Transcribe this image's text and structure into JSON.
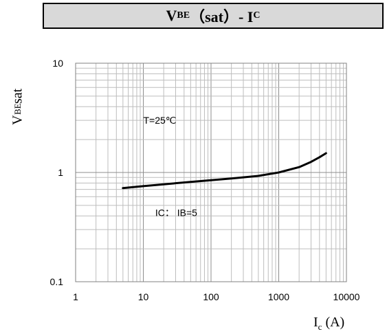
{
  "title": {
    "main": "V",
    "sub": "BE",
    "mid": "（sat）- I",
    "sub2": "C"
  },
  "ylabel": {
    "main": "V",
    "sub": "BE",
    "tail": "sat"
  },
  "xlabel": {
    "main": "I",
    "sub": "c",
    "tail": "(A)"
  },
  "chart_data": {
    "type": "line",
    "x_scale": "log",
    "y_scale": "log",
    "xlim": [
      1,
      10000
    ],
    "ylim": [
      0.1,
      10
    ],
    "x_ticks": [
      "1",
      "10",
      "100",
      "1000",
      "10000"
    ],
    "y_ticks": [
      "0.1",
      "1",
      "10"
    ],
    "grid": true,
    "annotations": [
      "T=25℃",
      "IC： IB=5"
    ],
    "series": [
      {
        "x": [
          5,
          10,
          20,
          50,
          100,
          200,
          500,
          1000,
          2000,
          3000,
          4000,
          5000
        ],
        "y": [
          0.72,
          0.75,
          0.78,
          0.82,
          0.85,
          0.88,
          0.93,
          1.0,
          1.12,
          1.25,
          1.38,
          1.5
        ]
      }
    ]
  }
}
